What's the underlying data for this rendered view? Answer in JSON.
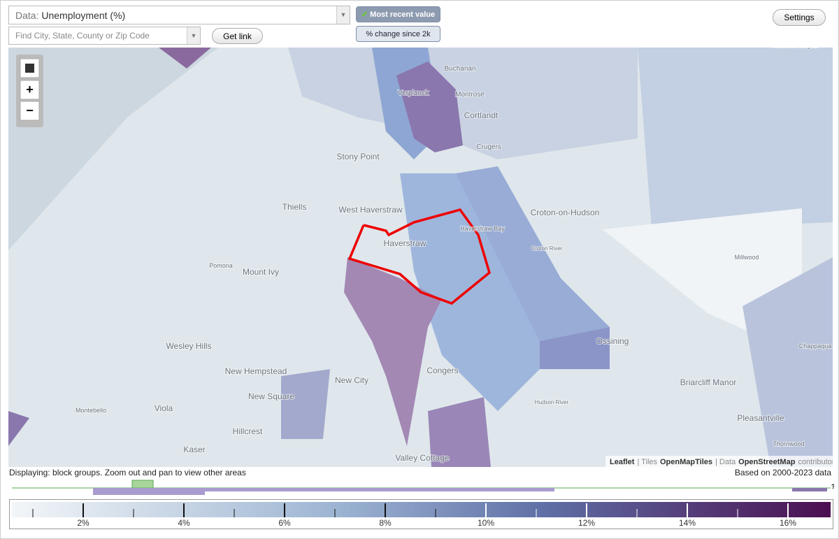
{
  "controls": {
    "data_prefix": "Data:",
    "data_value": "Unemployment (%)",
    "search_placeholder": "Find City, State, County or Zip Code",
    "get_link": "Get link",
    "toggle_recent": "Most recent value",
    "toggle_change": "% change since 2k",
    "settings": "Settings"
  },
  "map": {
    "zoom_in": "+",
    "zoom_out": "−",
    "places": [
      "Buchanan",
      "Verplanck",
      "Montrose",
      "Cortlandt",
      "Crugers",
      "Stony Point",
      "West Haverstraw",
      "Thiells",
      "Haverstraw",
      "Haverstraw Bay",
      "Croton-on-Hudson",
      "Pomona",
      "Mount Ivy",
      "Millwood",
      "Ossining",
      "Wesley Hills",
      "New Hempstead",
      "New City",
      "Congers",
      "Chappaqua",
      "Briarcliff Manor",
      "New Square",
      "Viola",
      "Montebello",
      "Hillcrest",
      "Kaser",
      "Pleasantville",
      "Thornwood",
      "Valley Cottage",
      "Hudson River",
      "Croton River",
      "Yorktown Heights"
    ],
    "attribution": [
      "Leaflet",
      "| Tiles",
      "OpenMapTiles",
      "| Data",
      "OpenStreetMap",
      "contributors"
    ]
  },
  "status": {
    "left": "Displaying: block groups. Zoom out and pan to view other areas",
    "right": "Based on 2000-2023 data"
  },
  "legend": {
    "labels": [
      "2%",
      "4%",
      "6%",
      "8%",
      "10%",
      "12%",
      "14%",
      "16%"
    ],
    "unknown": "?"
  }
}
